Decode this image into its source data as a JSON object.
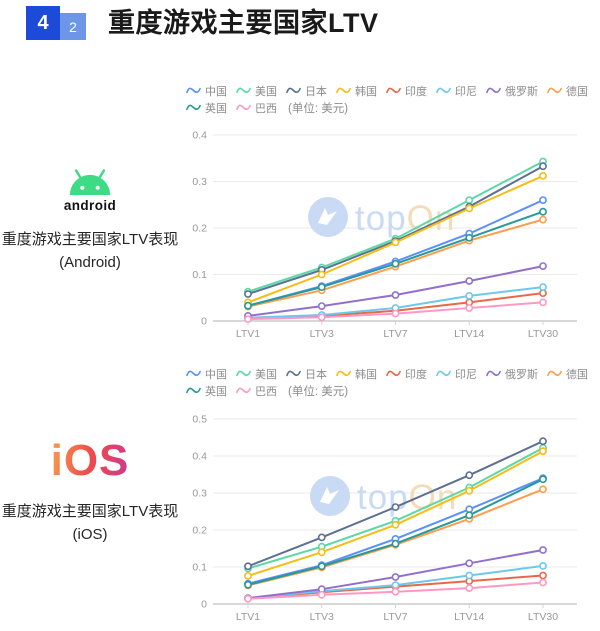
{
  "header": {
    "badge_primary": "4",
    "badge_secondary": "2",
    "title": "重度游戏主要国家LTV"
  },
  "colors": {
    "badge_primary_bg": "#1C4BD9",
    "badge_secondary_bg": "#6D96E8",
    "android_green": "#3DDC84",
    "ios_gradient_start": "#F6A04D",
    "ios_gradient_mid": "#EE4B4B",
    "ios_gradient_end": "#CA3A8E",
    "watermark_blue": "#C9DAF5",
    "watermark_orange": "#F4DCBA",
    "axis_text": "#999999",
    "grid_line": "#E9E9E9",
    "axis_line": "#C1C1C1",
    "legend_text": "#8C8C8C"
  },
  "watermark": {
    "text_blue": "top",
    "text_orange": "On"
  },
  "sections": [
    {
      "platform": "android",
      "wordmark": "android",
      "caption_line1": "重度游戏主要国家LTV表现",
      "caption_line2": "(Android)"
    },
    {
      "platform": "ios",
      "wordmark": "iOS",
      "caption_line1": "重度游戏主要国家LTV表现",
      "caption_line2": "(iOS)"
    }
  ],
  "chart_data": [
    {
      "type": "line",
      "title": "重度游戏主要国家LTV表现 (Android)",
      "unit_label": "(单位: 美元)",
      "legend_position": "top",
      "grid": "horizontal",
      "categories": [
        "LTV1",
        "LTV3",
        "LTV7",
        "LTV14",
        "LTV30"
      ],
      "ylim": [
        0,
        0.4
      ],
      "yticks": [
        0,
        0.1,
        0.2,
        0.3,
        0.4
      ],
      "series": [
        {
          "name": "中国",
          "color": "#5B8FF9",
          "values": [
            0.033,
            0.075,
            0.128,
            0.188,
            0.26
          ]
        },
        {
          "name": "美国",
          "color": "#5AD8A6",
          "values": [
            0.063,
            0.115,
            0.177,
            0.26,
            0.343
          ]
        },
        {
          "name": "日本",
          "color": "#5D7092",
          "values": [
            0.058,
            0.11,
            0.172,
            0.246,
            0.333
          ]
        },
        {
          "name": "韩国",
          "color": "#F6BD16",
          "values": [
            0.04,
            0.1,
            0.169,
            0.242,
            0.312
          ]
        },
        {
          "name": "印度",
          "color": "#E8684A",
          "values": [
            0.005,
            0.011,
            0.022,
            0.04,
            0.06
          ]
        },
        {
          "name": "印尼",
          "color": "#6DC8EC",
          "values": [
            0.007,
            0.013,
            0.028,
            0.054,
            0.073
          ]
        },
        {
          "name": "俄罗斯",
          "color": "#9270CA",
          "values": [
            0.011,
            0.032,
            0.056,
            0.086,
            0.118
          ]
        },
        {
          "name": "德国",
          "color": "#FF9D4D",
          "values": [
            0.031,
            0.066,
            0.117,
            0.173,
            0.218
          ]
        },
        {
          "name": "英国",
          "color": "#269A99",
          "values": [
            0.033,
            0.073,
            0.123,
            0.179,
            0.235
          ]
        },
        {
          "name": "巴西",
          "color": "#FF99C3",
          "values": [
            0.004,
            0.008,
            0.016,
            0.028,
            0.04
          ]
        }
      ]
    },
    {
      "type": "line",
      "title": "重度游戏主要国家LTV表现 (iOS)",
      "unit_label": "(单位: 美元)",
      "legend_position": "top",
      "grid": "horizontal",
      "categories": [
        "LTV1",
        "LTV3",
        "LTV7",
        "LTV14",
        "LTV30"
      ],
      "ylim": [
        0,
        0.5
      ],
      "yticks": [
        0,
        0.1,
        0.2,
        0.3,
        0.4,
        0.5
      ],
      "series": [
        {
          "name": "中国",
          "color": "#5B8FF9",
          "values": [
            0.055,
            0.105,
            0.176,
            0.256,
            0.34
          ]
        },
        {
          "name": "美国",
          "color": "#5AD8A6",
          "values": [
            0.096,
            0.155,
            0.225,
            0.315,
            0.422
          ]
        },
        {
          "name": "日本",
          "color": "#5D7092",
          "values": [
            0.102,
            0.18,
            0.262,
            0.348,
            0.44
          ]
        },
        {
          "name": "韩国",
          "color": "#F6BD16",
          "values": [
            0.076,
            0.14,
            0.214,
            0.306,
            0.413
          ]
        },
        {
          "name": "印度",
          "color": "#E8684A",
          "values": [
            0.015,
            0.032,
            0.047,
            0.062,
            0.077
          ]
        },
        {
          "name": "印尼",
          "color": "#6DC8EC",
          "values": [
            0.015,
            0.035,
            0.051,
            0.077,
            0.103
          ]
        },
        {
          "name": "俄罗斯",
          "color": "#9270CA",
          "values": [
            0.016,
            0.04,
            0.073,
            0.11,
            0.146
          ]
        },
        {
          "name": "德国",
          "color": "#FF9D4D",
          "values": [
            0.05,
            0.099,
            0.16,
            0.23,
            0.31
          ]
        },
        {
          "name": "英国",
          "color": "#269A99",
          "values": [
            0.052,
            0.102,
            0.163,
            0.24,
            0.337
          ]
        },
        {
          "name": "巴西",
          "color": "#FF99C3",
          "values": [
            0.014,
            0.025,
            0.033,
            0.043,
            0.058
          ]
        }
      ]
    }
  ]
}
